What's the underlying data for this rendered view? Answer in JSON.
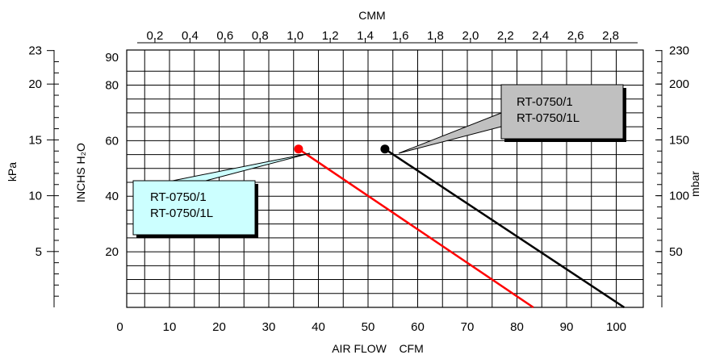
{
  "chart_data": {
    "type": "line",
    "axes": {
      "x_bottom": {
        "label": "AIR FLOW    CFM",
        "range": [
          0,
          104
        ],
        "ticks": [
          0,
          10,
          20,
          30,
          40,
          50,
          60,
          70,
          80,
          90,
          100
        ],
        "tick_labels": [
          "0",
          "10",
          "20",
          "30",
          "40",
          "50",
          "60",
          "70",
          "80",
          "90",
          "100"
        ]
      },
      "x_top": {
        "label": "CMM",
        "ticks": [
          0.2,
          0.4,
          0.6,
          0.8,
          1.0,
          1.2,
          1.4,
          1.6,
          1.8,
          2.0,
          2.2,
          2.4,
          2.6,
          2.8
        ],
        "tick_labels": [
          "0.2",
          "0.4",
          "0.6",
          "0.8",
          "1.0",
          "1.2",
          "1.4",
          "1.6",
          "1.8",
          "2.0",
          "2.2",
          "2.4",
          "2.6",
          "2.8"
        ]
      },
      "y_left": {
        "label": "INCHS  H₂O",
        "range": [
          0,
          90
        ],
        "ticks": [
          20,
          40,
          60,
          80,
          90
        ],
        "tick_labels": [
          "20",
          "40",
          "60",
          "80",
          "90"
        ]
      },
      "y_far_left": {
        "label": "kPa",
        "ticks": [
          5,
          10,
          15,
          20,
          23
        ],
        "tick_labels": [
          "5",
          "10",
          "15",
          "20",
          "23"
        ]
      },
      "y_right": {
        "label": "mbar",
        "ticks": [
          50,
          100,
          150,
          200,
          230
        ],
        "tick_labels": [
          "50",
          "100",
          "150",
          "200",
          "230"
        ]
      }
    },
    "grid": true,
    "series": [
      {
        "name": "RT-0750/1",
        "color": "#ff0000",
        "x": [
          36,
          83.3
        ],
        "y": [
          57,
          0
        ],
        "marker_at_start": true
      },
      {
        "name": "RT-0750/1L",
        "color": "#000000",
        "x": [
          53.4,
          101.6
        ],
        "y": [
          57,
          0
        ],
        "marker_at_start": true
      }
    ],
    "annotations": [
      {
        "lines": [
          "RT-0750/1",
          "RT-0750/1L"
        ],
        "fill": "#ccffff",
        "points_to_series": 0
      },
      {
        "lines": [
          "RT-0750/1",
          "RT-0750/1L"
        ],
        "fill": "#c0c0c0",
        "points_to_series": 1
      }
    ]
  }
}
